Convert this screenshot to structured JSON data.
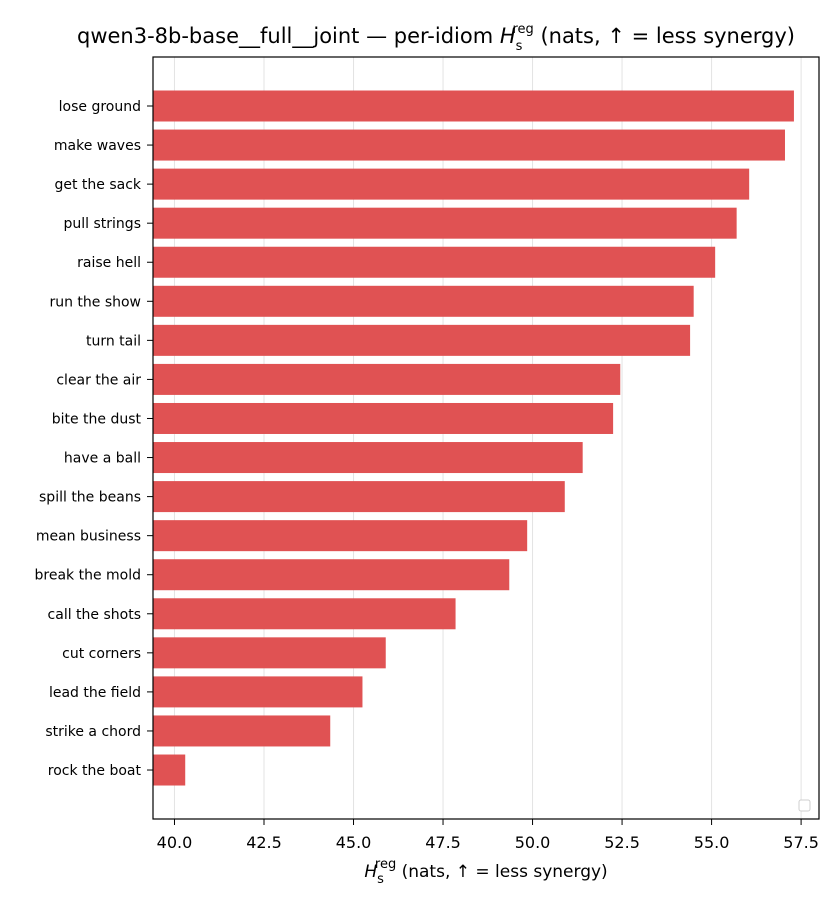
{
  "chart_data": {
    "type": "bar",
    "orientation": "horizontal",
    "title": {
      "prefix": "qwen3-8b-base__full__joint — per-idiom ",
      "symbol": "H",
      "subscript": "s",
      "superscript": "reg",
      "suffix": " (nats, ↑ = less synergy)"
    },
    "xlabel": {
      "symbol": "H",
      "subscript": "s",
      "superscript": "reg",
      "suffix": " (nats, ↑ = less synergy)"
    },
    "categories": [
      "lose ground",
      "make waves",
      "get the sack",
      "pull strings",
      "raise hell",
      "run the show",
      "turn tail",
      "clear the air",
      "bite the dust",
      "have a ball",
      "spill the beans",
      "mean business",
      "break the mold",
      "call the shots",
      "cut corners",
      "lead the field",
      "strike a chord",
      "rock the boat"
    ],
    "values": [
      57.3,
      57.05,
      56.05,
      55.7,
      55.1,
      54.5,
      54.4,
      52.45,
      52.25,
      51.4,
      50.9,
      49.85,
      49.35,
      47.85,
      45.9,
      45.25,
      44.35,
      40.3
    ],
    "xlim": [
      39.4,
      58.0
    ],
    "xticks": [
      "40.0",
      "42.5",
      "45.0",
      "47.5",
      "50.0",
      "52.5",
      "55.0",
      "57.5"
    ],
    "grid": "vertical",
    "legend": "lower-right (empty)",
    "color": "#e05253"
  }
}
